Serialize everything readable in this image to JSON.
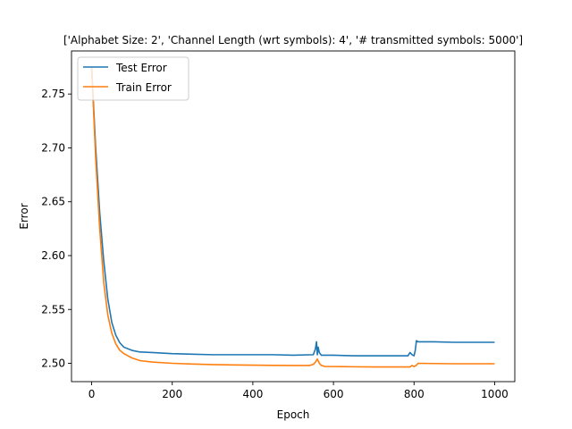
{
  "chart_data": {
    "type": "line",
    "title": "['Alphabet Size: 2', 'Channel Length (wrt symbols): 4', '# transmitted symbols: 5000']",
    "xlabel": "Epoch",
    "ylabel": "Error",
    "xlim": [
      -50,
      1050
    ],
    "ylim": [
      2.483,
      2.79
    ],
    "xticks": [
      0,
      200,
      400,
      600,
      800,
      1000
    ],
    "yticks": [
      2.5,
      2.55,
      2.6,
      2.65,
      2.7,
      2.75
    ],
    "xtick_labels": [
      "0",
      "200",
      "400",
      "600",
      "800",
      "1000"
    ],
    "ytick_labels": [
      "2.50",
      "2.55",
      "2.60",
      "2.65",
      "2.70",
      "2.75"
    ],
    "grid": false,
    "legend_position": "top-left",
    "series": [
      {
        "name": "Test Error",
        "color": "#1f77b4",
        "x": [
          0,
          10,
          20,
          30,
          40,
          50,
          60,
          70,
          80,
          100,
          120,
          150,
          200,
          250,
          300,
          350,
          400,
          450,
          500,
          550,
          555,
          558,
          560,
          562,
          565,
          570,
          600,
          650,
          700,
          750,
          785,
          790,
          795,
          800,
          803,
          806,
          810,
          850,
          900,
          950,
          1000
        ],
        "y": [
          2.775,
          2.7,
          2.64,
          2.595,
          2.56,
          2.538,
          2.526,
          2.519,
          2.515,
          2.512,
          2.5105,
          2.51,
          2.509,
          2.5085,
          2.508,
          2.508,
          2.508,
          2.508,
          2.5075,
          2.508,
          2.513,
          2.52,
          2.508,
          2.515,
          2.51,
          2.5075,
          2.5075,
          2.507,
          2.507,
          2.507,
          2.507,
          2.51,
          2.508,
          2.507,
          2.512,
          2.521,
          2.52,
          2.52,
          2.5195,
          2.5195,
          2.5195
        ]
      },
      {
        "name": "Train Error",
        "color": "#ff7f0e",
        "x": [
          0,
          10,
          20,
          30,
          40,
          50,
          60,
          70,
          80,
          100,
          120,
          150,
          200,
          250,
          300,
          350,
          400,
          450,
          500,
          540,
          550,
          555,
          560,
          565,
          570,
          580,
          600,
          650,
          700,
          750,
          790,
          795,
          800,
          805,
          810,
          850,
          900,
          950,
          1000
        ],
        "y": [
          2.775,
          2.69,
          2.625,
          2.575,
          2.545,
          2.528,
          2.518,
          2.512,
          2.509,
          2.505,
          2.5025,
          2.5012,
          2.5,
          2.4993,
          2.4988,
          2.4985,
          2.4983,
          2.4981,
          2.498,
          2.498,
          2.499,
          2.501,
          2.504,
          2.5,
          2.498,
          2.497,
          2.497,
          2.4968,
          2.4966,
          2.4966,
          2.4966,
          2.498,
          2.497,
          2.498,
          2.5,
          2.4998,
          2.4996,
          2.4996,
          2.4996
        ]
      }
    ]
  }
}
